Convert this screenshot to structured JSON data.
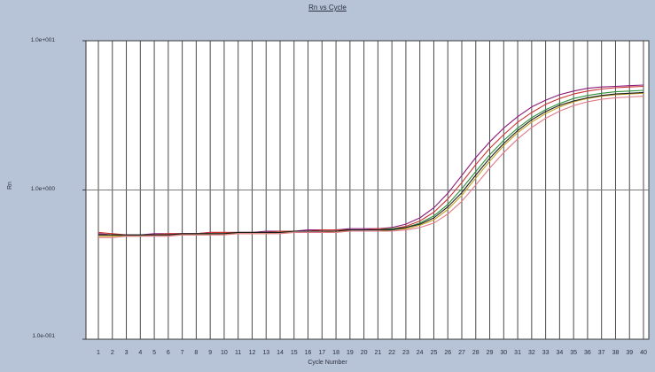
{
  "chart_data": {
    "type": "line",
    "title": "Rn vs Cycle",
    "xlabel": "Cycle Number",
    "ylabel": "Rn",
    "ytick_labels": [
      "1.0e+001",
      "1.0e+000",
      "1.0e-001"
    ],
    "x": [
      1,
      2,
      3,
      4,
      5,
      6,
      7,
      8,
      9,
      10,
      11,
      12,
      13,
      14,
      15,
      16,
      17,
      18,
      19,
      20,
      21,
      22,
      23,
      24,
      25,
      26,
      27,
      28,
      29,
      30,
      31,
      32,
      33,
      34,
      35,
      36,
      37,
      38,
      39,
      40
    ],
    "xlim": [
      1,
      40
    ],
    "ylim": [
      0.1,
      10
    ],
    "yscale": "log",
    "grid": "vertical lines at each cycle",
    "series": [
      {
        "color": "#8b1a7a",
        "values": [
          0.51,
          0.5,
          0.5,
          0.5,
          0.51,
          0.51,
          0.51,
          0.51,
          0.52,
          0.52,
          0.52,
          0.52,
          0.53,
          0.53,
          0.53,
          0.54,
          0.54,
          0.54,
          0.55,
          0.55,
          0.55,
          0.56,
          0.59,
          0.65,
          0.76,
          0.95,
          1.25,
          1.65,
          2.1,
          2.6,
          3.1,
          3.6,
          4.0,
          4.35,
          4.6,
          4.8,
          4.9,
          4.95,
          5.0,
          5.05
        ]
      },
      {
        "color": "#cc3333",
        "values": [
          0.52,
          0.51,
          0.5,
          0.5,
          0.5,
          0.51,
          0.51,
          0.51,
          0.52,
          0.52,
          0.52,
          0.52,
          0.52,
          0.53,
          0.53,
          0.53,
          0.54,
          0.54,
          0.54,
          0.54,
          0.55,
          0.55,
          0.57,
          0.62,
          0.71,
          0.87,
          1.12,
          1.48,
          1.9,
          2.35,
          2.85,
          3.3,
          3.75,
          4.1,
          4.4,
          4.6,
          4.75,
          4.85,
          4.9,
          4.95
        ]
      },
      {
        "color": "#2f8f3a",
        "values": [
          0.5,
          0.5,
          0.49,
          0.5,
          0.5,
          0.5,
          0.5,
          0.51,
          0.51,
          0.51,
          0.52,
          0.52,
          0.52,
          0.52,
          0.53,
          0.53,
          0.53,
          0.53,
          0.54,
          0.54,
          0.54,
          0.55,
          0.56,
          0.6,
          0.67,
          0.8,
          1.02,
          1.33,
          1.72,
          2.15,
          2.6,
          3.05,
          3.45,
          3.8,
          4.1,
          4.3,
          4.45,
          4.55,
          4.6,
          4.65
        ]
      },
      {
        "color": "#c9a227",
        "values": [
          0.49,
          0.49,
          0.49,
          0.49,
          0.5,
          0.5,
          0.5,
          0.5,
          0.5,
          0.51,
          0.51,
          0.51,
          0.51,
          0.52,
          0.52,
          0.52,
          0.52,
          0.53,
          0.53,
          0.53,
          0.53,
          0.54,
          0.55,
          0.58,
          0.63,
          0.74,
          0.92,
          1.2,
          1.56,
          1.98,
          2.42,
          2.85,
          3.25,
          3.6,
          3.9,
          4.1,
          4.25,
          4.35,
          4.4,
          4.45
        ]
      },
      {
        "color": "#1e1e1e",
        "values": [
          0.5,
          0.5,
          0.5,
          0.5,
          0.5,
          0.5,
          0.51,
          0.51,
          0.51,
          0.51,
          0.52,
          0.52,
          0.52,
          0.52,
          0.53,
          0.53,
          0.53,
          0.53,
          0.54,
          0.54,
          0.54,
          0.54,
          0.56,
          0.59,
          0.65,
          0.77,
          0.96,
          1.26,
          1.63,
          2.05,
          2.5,
          2.95,
          3.35,
          3.7,
          3.95,
          4.15,
          4.3,
          4.4,
          4.45,
          4.5
        ]
      },
      {
        "color": "#e07a8a",
        "values": [
          0.48,
          0.48,
          0.49,
          0.49,
          0.49,
          0.49,
          0.5,
          0.5,
          0.5,
          0.5,
          0.51,
          0.51,
          0.51,
          0.51,
          0.52,
          0.52,
          0.52,
          0.52,
          0.53,
          0.53,
          0.53,
          0.53,
          0.54,
          0.56,
          0.6,
          0.69,
          0.84,
          1.08,
          1.4,
          1.78,
          2.2,
          2.62,
          3.02,
          3.38,
          3.68,
          3.9,
          4.05,
          4.15,
          4.2,
          4.25
        ]
      }
    ]
  }
}
